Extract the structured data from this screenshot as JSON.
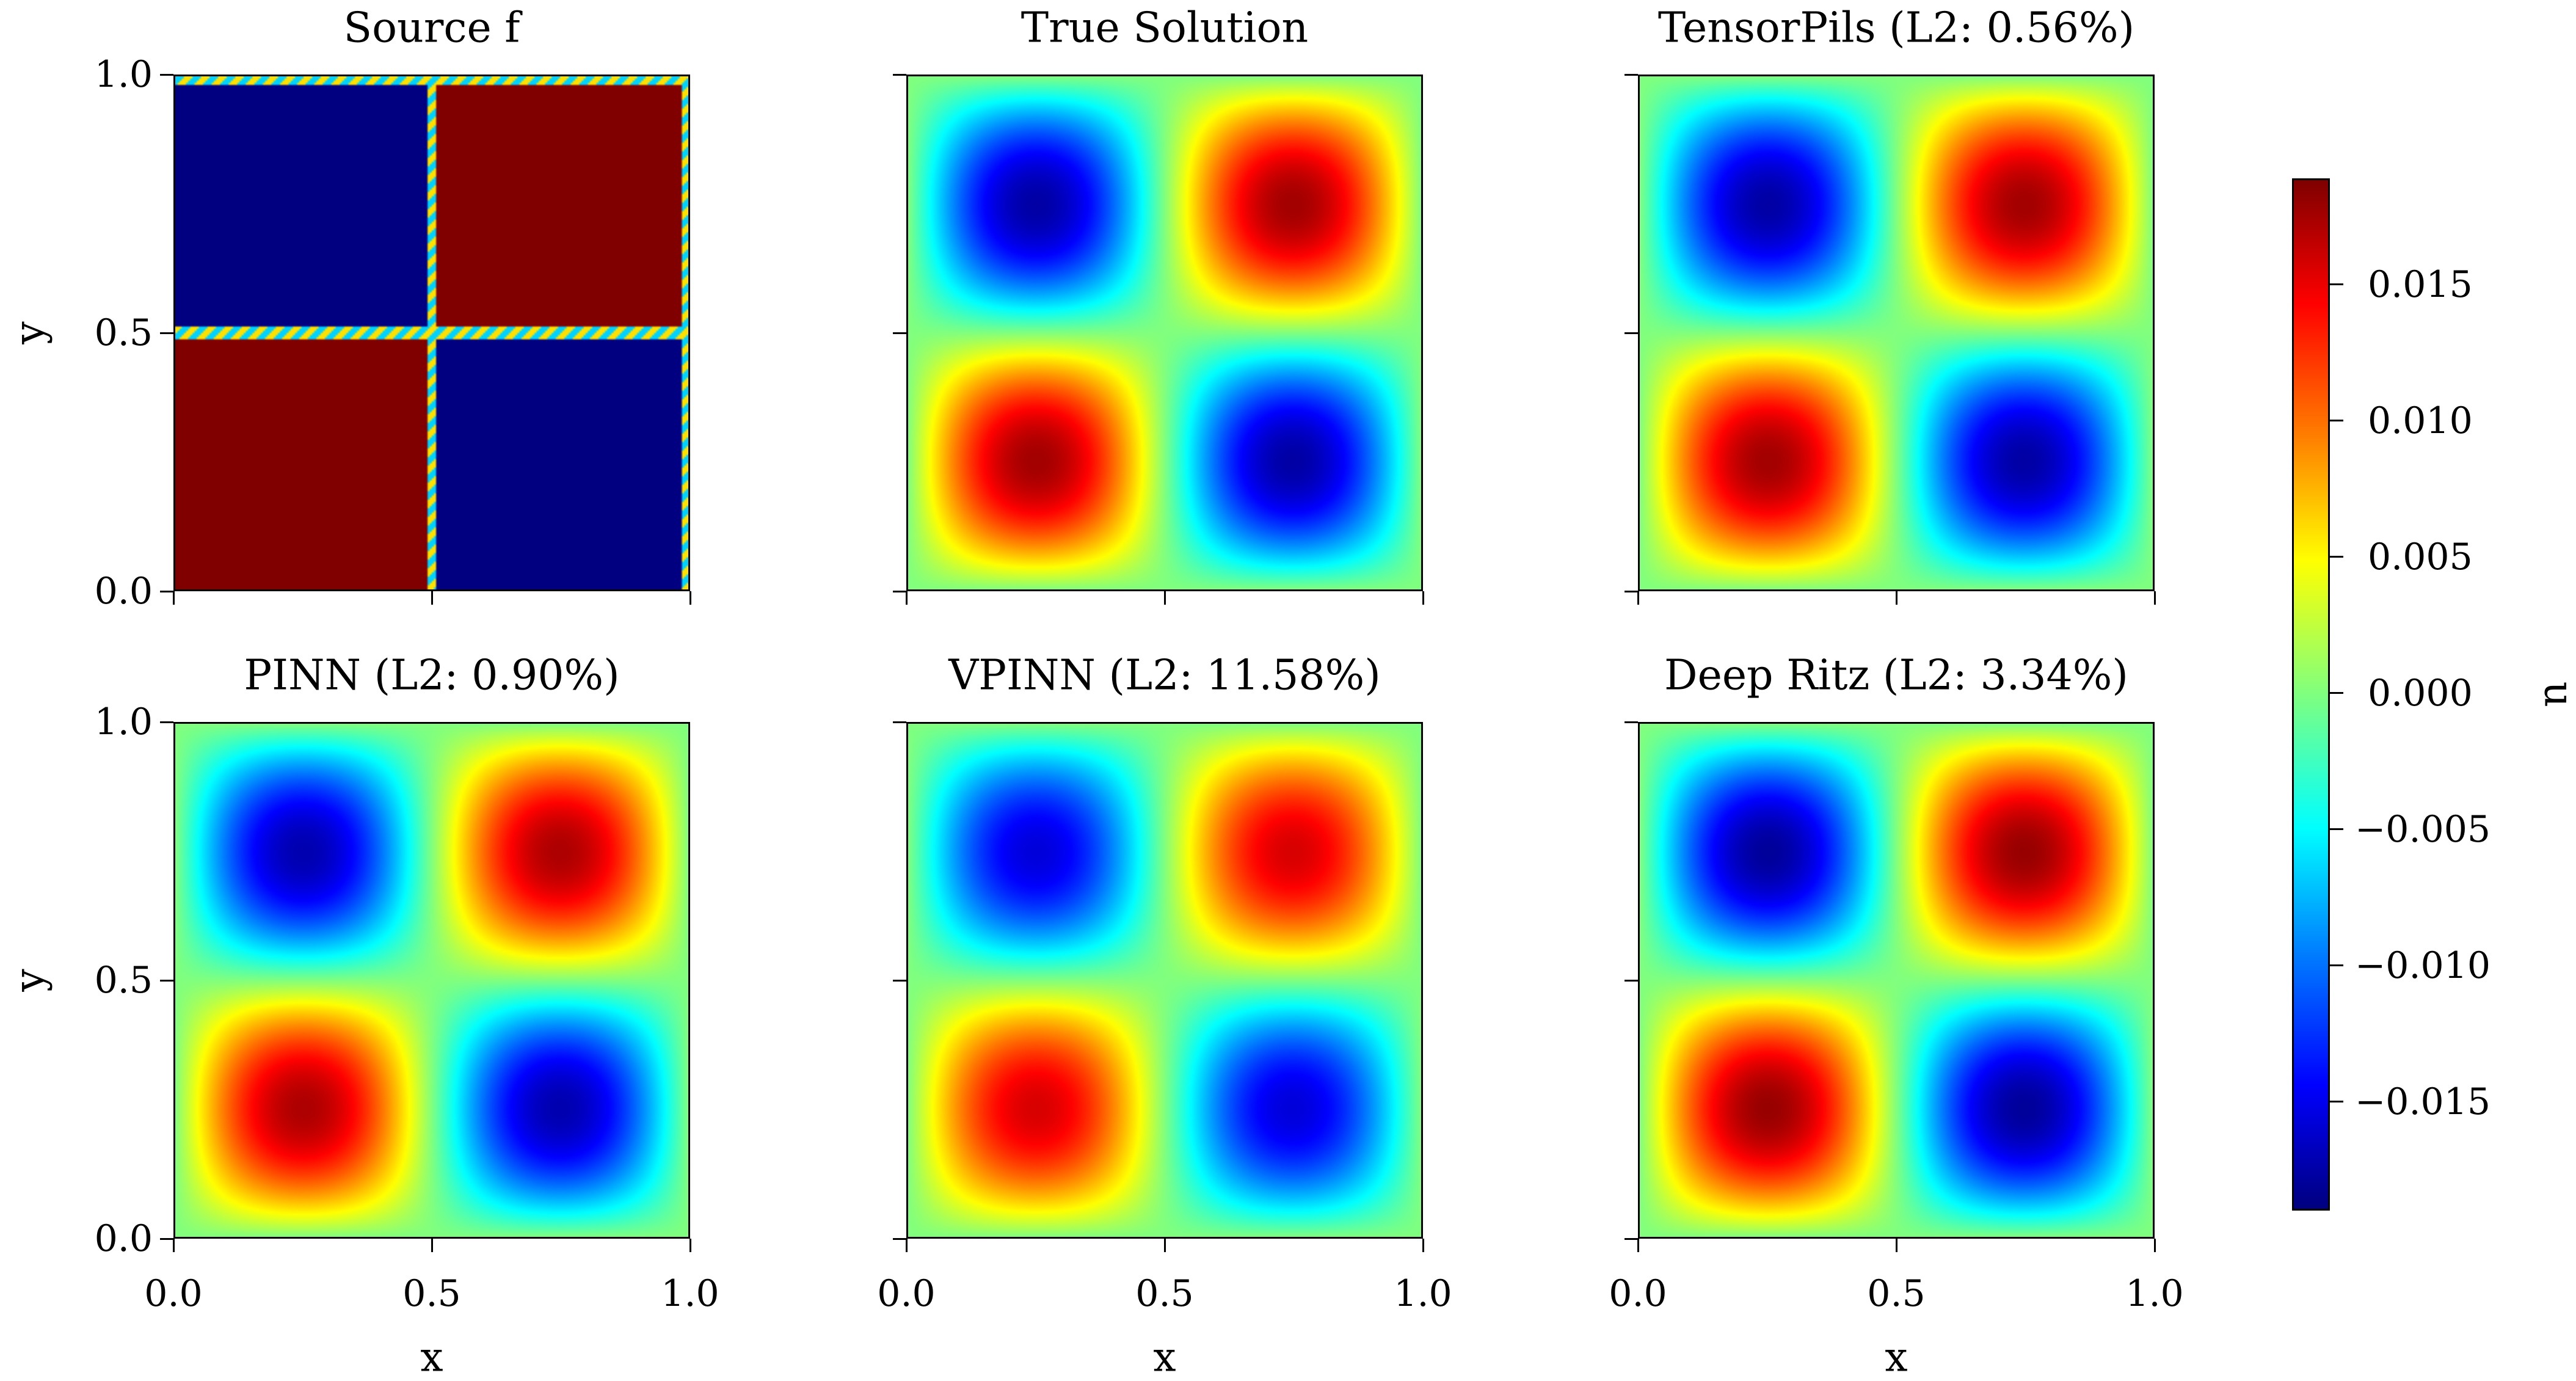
{
  "chart_data": {
    "type": "heatmap",
    "colormap": "jet",
    "panels": [
      {
        "title": "Source f",
        "field": "sign(sin(2πx)·sin(2πy))",
        "kind": "source",
        "amplitude": 1
      },
      {
        "title": "True Solution",
        "field": "A·sin(2πx)·sin(2πy)",
        "kind": "smooth",
        "amplitude": 0.0176
      },
      {
        "title": "TensorPils (L2: 0.56%)",
        "field": "A·sin(2πx)·sin(2πy)",
        "kind": "smooth",
        "amplitude": 0.0176
      },
      {
        "title": "PINN (L2: 0.90%)",
        "field": "A·sin(2πx)·sin(2πy)",
        "kind": "smooth",
        "amplitude": 0.0172
      },
      {
        "title": "VPINN (L2: 11.58%)",
        "field": "A·sin(2πx)·sin(2πy)",
        "kind": "smooth",
        "amplitude": 0.0156
      },
      {
        "title": "Deep Ritz (L2: 3.34%)",
        "field": "A·sin(2πx)·sin(2πy)",
        "kind": "smooth",
        "amplitude": 0.018
      }
    ],
    "xlabel": "x",
    "ylabel": "y",
    "xlim": [
      0.0,
      1.0
    ],
    "ylim": [
      0.0,
      1.0
    ],
    "xticks": [
      "0.0",
      "0.5",
      "1.0"
    ],
    "yticks": [
      "0.0",
      "0.5",
      "1.0"
    ],
    "grid": false,
    "colorbar": {
      "label": "u",
      "range": [
        -0.019,
        0.0189
      ],
      "ticks": [
        0.015,
        0.01,
        0.005,
        0.0,
        -0.005,
        -0.01,
        -0.015
      ],
      "tick_labels": [
        "0.015",
        "0.010",
        "0.005",
        "0.000",
        "−0.005",
        "−0.010",
        "−0.015"
      ],
      "placement": "right"
    }
  }
}
